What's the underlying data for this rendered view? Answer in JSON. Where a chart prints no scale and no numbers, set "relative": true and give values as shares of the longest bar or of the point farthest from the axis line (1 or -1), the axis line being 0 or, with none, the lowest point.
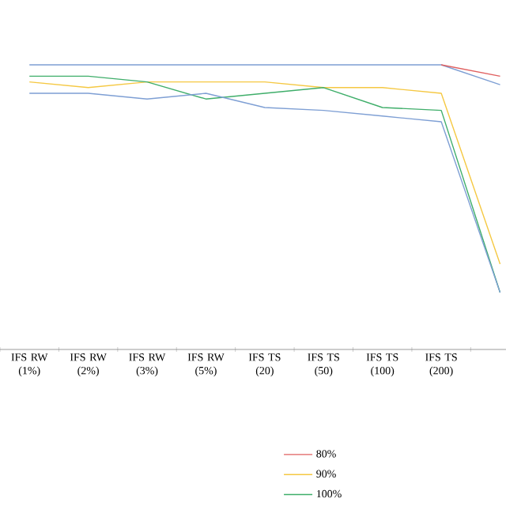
{
  "chart_data": {
    "type": "line",
    "relative": true,
    "legend": "bottom",
    "categories": [
      "IFS RW (1%)",
      "IFS RW (2%)",
      "IFS RW (3%)",
      "IFS RW (5%)",
      "IFS TS (20)",
      "IFS TS (50)",
      "IFS TS (100)",
      "IFS TS (200)",
      null
    ],
    "series": [
      {
        "color": "#7e9fd4",
        "values": [
          1.0,
          1.0,
          1.0,
          1.0,
          1.0,
          1.0,
          1.0,
          1.0,
          0.93
        ]
      },
      {
        "name": "80%",
        "color": "#e06060",
        "values": [
          null,
          null,
          null,
          null,
          null,
          null,
          null,
          1.0,
          0.96
        ]
      },
      {
        "name": "90%",
        "color": "#f5c842",
        "values": [
          0.94,
          0.92,
          0.94,
          0.94,
          0.94,
          0.92,
          0.92,
          0.9,
          0.3
        ]
      },
      {
        "name": "100%",
        "color": "#3fae6a",
        "values": [
          0.96,
          0.96,
          0.94,
          0.88,
          0.9,
          0.92,
          0.85,
          0.84,
          0.2
        ]
      },
      {
        "color": "#7e9fd4",
        "values": [
          0.9,
          0.9,
          0.88,
          0.9,
          0.85,
          0.84,
          0.82,
          0.8,
          0.2
        ]
      }
    ]
  }
}
